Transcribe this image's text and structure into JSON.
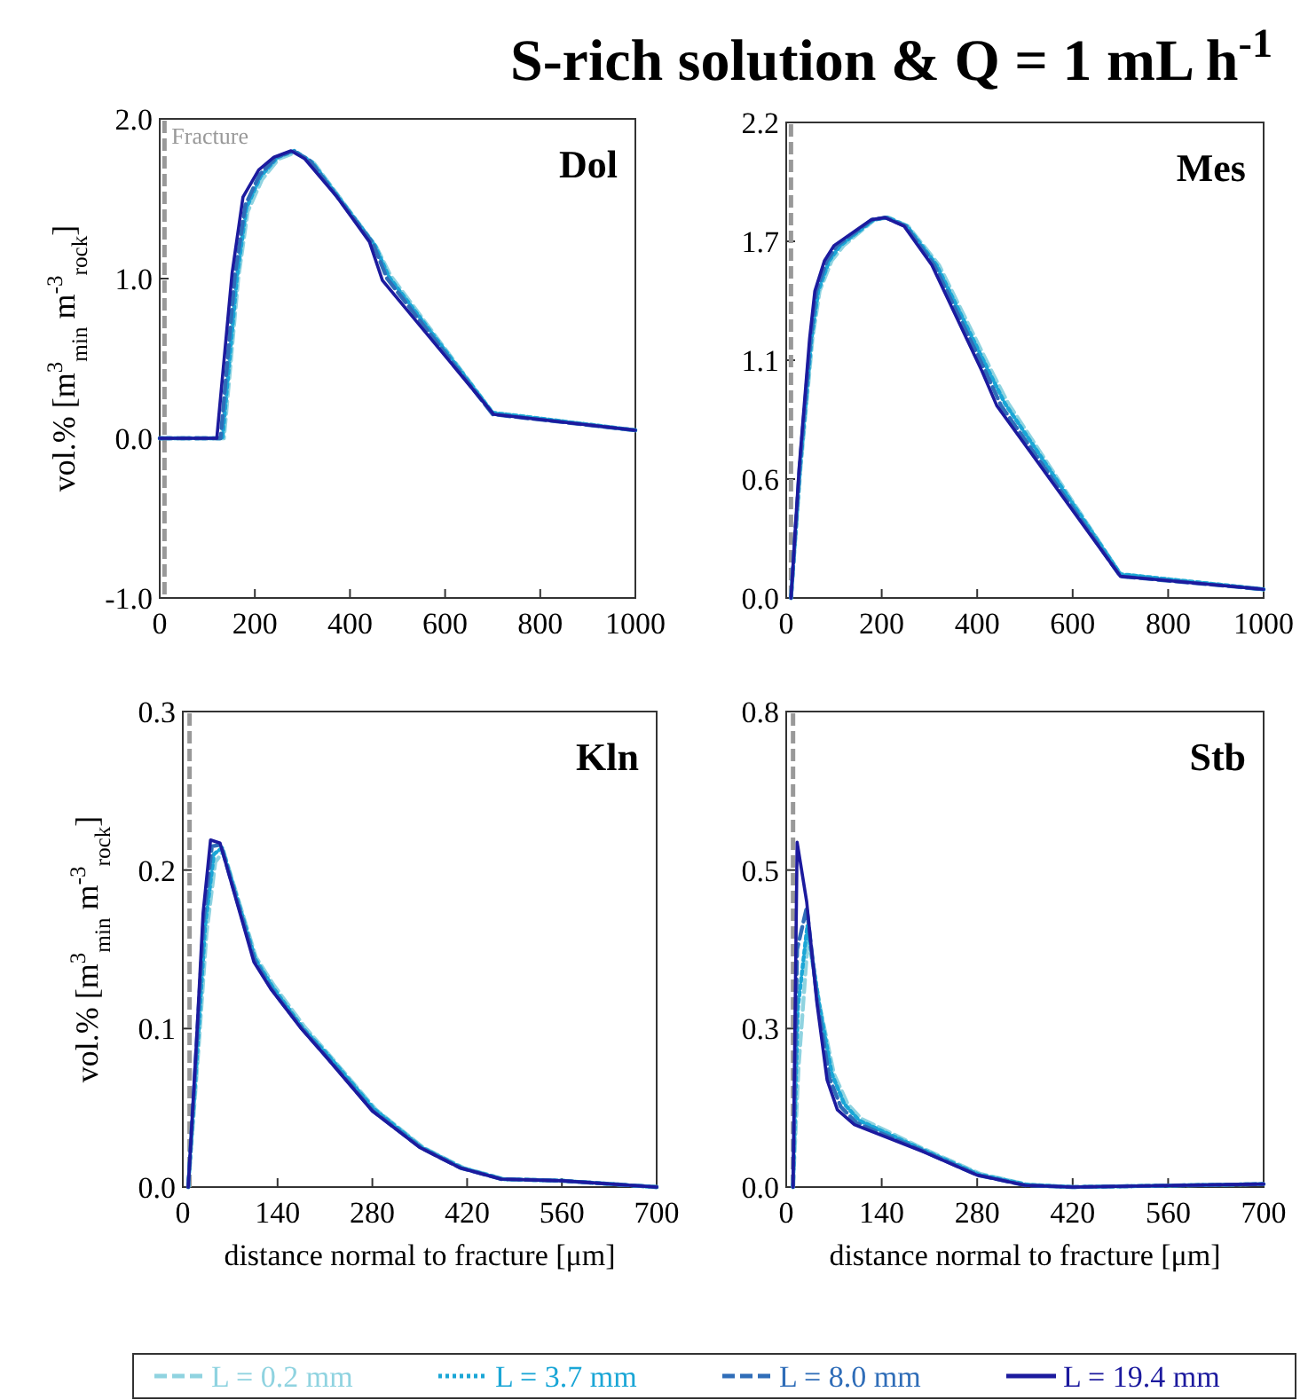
{
  "chart_data": [
    {
      "type": "line",
      "title": "Dol",
      "annotations": [
        "S-rich solution & Q = 1 mL h$^{-1}$"
      ],
      "ylabel": "vol.% [m$^{3}$$_{min}$ m$^{-3}$$_{rock}$]",
      "xlim": [
        0,
        1000
      ],
      "xticks": [
        0,
        200,
        400,
        600,
        800,
        1000
      ],
      "ylim": [
        -1,
        2
      ],
      "yticks": [
        {
          "value": -1,
          "label": "-1.0"
        },
        {
          "value": 0,
          "label": "0.0"
        },
        {
          "value": 1,
          "label": "1.0"
        },
        {
          "value": 2,
          "label": "2.0"
        }
      ],
      "legend": "bottom",
      "ref_lines": [
        {
          "axis": "x",
          "value": 10,
          "label": "Fracture",
          "color": "#999999",
          "line_style": "dashed"
        }
      ],
      "series": [
        {
          "name": "L = 0.2 mm",
          "color": "#8fd3e0",
          "line_style": "dashed",
          "x": [
            0,
            135,
            165,
            185,
            215,
            250,
            285,
            325,
            455,
            485,
            700,
            1000
          ],
          "values": [
            0,
            0,
            1.0,
            1.42,
            1.62,
            1.75,
            1.79,
            1.72,
            1.2,
            1.02,
            0.16,
            0.05
          ]
        },
        {
          "name": "L = 3.7 mm",
          "color": "#1aa6d6",
          "line_style": "dotted",
          "x": [
            0,
            132,
            162,
            182,
            212,
            248,
            283,
            320,
            452,
            482,
            700,
            1000
          ],
          "values": [
            0,
            0,
            1.0,
            1.44,
            1.64,
            1.76,
            1.8,
            1.73,
            1.21,
            1.01,
            0.16,
            0.05
          ]
        },
        {
          "name": "L = 8.0 mm",
          "color": "#2f6db8",
          "line_style": "dashed",
          "x": [
            0,
            128,
            158,
            180,
            210,
            245,
            280,
            315,
            448,
            478,
            700,
            1000
          ],
          "values": [
            0,
            0,
            1.02,
            1.46,
            1.65,
            1.76,
            1.8,
            1.74,
            1.22,
            1.0,
            0.15,
            0.05
          ]
        },
        {
          "name": "L = 19.4 mm",
          "color": "#1c1a9e",
          "line_style": "solid",
          "x": [
            0,
            120,
            152,
            175,
            208,
            240,
            276,
            305,
            373,
            441,
            468,
            702,
            1000
          ],
          "values": [
            0,
            0,
            1.03,
            1.51,
            1.68,
            1.76,
            1.8,
            1.75,
            1.51,
            1.23,
            0.99,
            0.15,
            0.05
          ]
        }
      ]
    },
    {
      "type": "line",
      "title": "Mes",
      "xlim": [
        0,
        1000
      ],
      "xticks": [
        0,
        200,
        400,
        600,
        800,
        1000
      ],
      "ylim": [
        0,
        2.2
      ],
      "yticks": [
        {
          "value": 0,
          "label": "0.0"
        },
        {
          "value": 0.55,
          "label": "0.6"
        },
        {
          "value": 1.1,
          "label": "1.1"
        },
        {
          "value": 1.65,
          "label": "1.7"
        },
        {
          "value": 2.2,
          "label": "2.2"
        }
      ],
      "ref_lines": [
        {
          "axis": "x",
          "value": 10,
          "color": "#999999",
          "line_style": "dashed"
        }
      ],
      "series": [
        {
          "color": "#8fd3e0",
          "line_style": "dashed",
          "x": [
            10,
            30,
            55,
            70,
            95,
            120,
            185,
            215,
            255,
            320,
            430,
            465,
            700,
            1000
          ],
          "values": [
            0,
            0.6,
            1.2,
            1.42,
            1.56,
            1.63,
            1.75,
            1.76,
            1.72,
            1.54,
            1.05,
            0.9,
            0.11,
            0.04
          ]
        },
        {
          "color": "#1aa6d6",
          "line_style": "dotted",
          "x": [
            10,
            29,
            53,
            67,
            90,
            113,
            183,
            212,
            253,
            315,
            424,
            458,
            700,
            1000
          ],
          "values": [
            0,
            0.6,
            1.2,
            1.42,
            1.56,
            1.63,
            1.75,
            1.76,
            1.72,
            1.54,
            1.05,
            0.9,
            0.11,
            0.04
          ]
        },
        {
          "color": "#2f6db8",
          "line_style": "dashed",
          "x": [
            10,
            28,
            51,
            63,
            85,
            106,
            180,
            209,
            250,
            310,
            417,
            450,
            700,
            1000
          ],
          "values": [
            0,
            0.6,
            1.2,
            1.42,
            1.56,
            1.63,
            1.75,
            1.76,
            1.72,
            1.54,
            1.05,
            0.89,
            0.1,
            0.04
          ]
        },
        {
          "color": "#1c1a9e",
          "line_style": "solid",
          "x": [
            10,
            27,
            49,
            60,
            80,
            100,
            178,
            206,
            247,
            305,
            410,
            441,
            700,
            1000
          ],
          "values": [
            0,
            0.6,
            1.2,
            1.42,
            1.56,
            1.63,
            1.75,
            1.76,
            1.72,
            1.54,
            1.05,
            0.89,
            0.1,
            0.04
          ]
        }
      ]
    },
    {
      "type": "line",
      "title": "Kln",
      "ylabel": "vol.% [m$^{3}$$_{min}$ m$^{-3}$$_{rock}$]",
      "xlabel": "distance normal to fracture [μm]",
      "xlim": [
        0,
        700
      ],
      "xticks": [
        0,
        140,
        280,
        420,
        560,
        700
      ],
      "ylim": [
        0,
        0.3
      ],
      "yticks": [
        {
          "value": 0,
          "label": "0.0"
        },
        0.1,
        0.2,
        0.3
      ],
      "ref_lines": [
        {
          "axis": "x",
          "value": 10,
          "color": "#999999",
          "line_style": "dashed"
        }
      ],
      "series": [
        {
          "color": "#8fd3e0",
          "line_style": "dashed",
          "x": [
            8,
            22,
            35,
            48,
            60,
            108,
            135,
            180,
            215,
            285,
            355,
            415,
            475,
            560,
            700
          ],
          "values": [
            0,
            0.08,
            0.16,
            0.205,
            0.212,
            0.145,
            0.127,
            0.101,
            0.084,
            0.049,
            0.025,
            0.012,
            0.005,
            0.004,
            0
          ]
        },
        {
          "color": "#1aa6d6",
          "line_style": "dotted",
          "x": [
            8,
            21,
            33,
            46,
            58,
            107,
            133,
            178,
            213,
            283,
            353,
            413,
            473,
            560,
            700
          ],
          "values": [
            0,
            0.083,
            0.165,
            0.21,
            0.214,
            0.144,
            0.126,
            0.1,
            0.084,
            0.049,
            0.025,
            0.012,
            0.005,
            0.004,
            0
          ]
        },
        {
          "color": "#2f6db8",
          "line_style": "dashed",
          "x": [
            8,
            20,
            31,
            43,
            56,
            106,
            131,
            176,
            211,
            281,
            351,
            411,
            471,
            560,
            700
          ],
          "values": [
            0,
            0.087,
            0.17,
            0.215,
            0.216,
            0.143,
            0.125,
            0.1,
            0.083,
            0.048,
            0.025,
            0.012,
            0.005,
            0.004,
            0
          ]
        },
        {
          "color": "#1c1a9e",
          "line_style": "solid",
          "x": [
            8,
            20,
            30,
            41,
            55,
            105,
            130,
            175,
            210,
            280,
            350,
            410,
            470,
            560,
            700
          ],
          "values": [
            0,
            0.09,
            0.173,
            0.219,
            0.217,
            0.142,
            0.125,
            0.1,
            0.083,
            0.048,
            0.025,
            0.012,
            0.005,
            0.004,
            0
          ]
        }
      ]
    },
    {
      "type": "line",
      "title": "Stb",
      "xlabel": "distance normal to fracture [μm]",
      "xlim": [
        0,
        700
      ],
      "xticks": [
        0,
        140,
        280,
        420,
        560,
        700
      ],
      "ylim": [
        0,
        0.8
      ],
      "yticks": [
        {
          "value": 0,
          "label": "0.0"
        },
        {
          "value": 0.2667,
          "label": "0.3"
        },
        {
          "value": 0.5333,
          "label": "0.5"
        },
        {
          "value": 0.8,
          "label": "0.8"
        }
      ],
      "ref_lines": [
        {
          "axis": "x",
          "value": 10,
          "color": "#999999",
          "line_style": "dashed"
        }
      ],
      "series": [
        {
          "color": "#8fd3e0",
          "line_style": "dashed",
          "x": [
            10,
            18,
            32,
            50,
            70,
            90,
            110,
            200,
            285,
            355,
            420,
            700
          ],
          "values": [
            0,
            0.2,
            0.42,
            0.3,
            0.19,
            0.14,
            0.115,
            0.065,
            0.022,
            0.004,
            0,
            0.005
          ]
        },
        {
          "color": "#1aa6d6",
          "line_style": "dotted",
          "x": [
            10,
            17,
            31,
            48,
            67,
            85,
            107,
            200,
            283,
            353,
            420,
            700
          ],
          "values": [
            0,
            0.3,
            0.44,
            0.31,
            0.19,
            0.14,
            0.112,
            0.063,
            0.021,
            0.004,
            0,
            0.005
          ]
        },
        {
          "color": "#2f6db8",
          "line_style": "dashed",
          "x": [
            10,
            16,
            30,
            46,
            63,
            80,
            103,
            200,
            281,
            351,
            420,
            700
          ],
          "values": [
            0,
            0.4,
            0.47,
            0.31,
            0.185,
            0.135,
            0.108,
            0.061,
            0.02,
            0.003,
            0,
            0.005
          ]
        },
        {
          "color": "#1c1a9e",
          "line_style": "solid",
          "x": [
            10,
            16,
            30,
            45,
            60,
            75,
            100,
            200,
            280,
            350,
            420,
            700
          ],
          "values": [
            0,
            0.58,
            0.48,
            0.31,
            0.18,
            0.13,
            0.105,
            0.06,
            0.02,
            0.003,
            0,
            0.005
          ]
        }
      ]
    }
  ]
}
